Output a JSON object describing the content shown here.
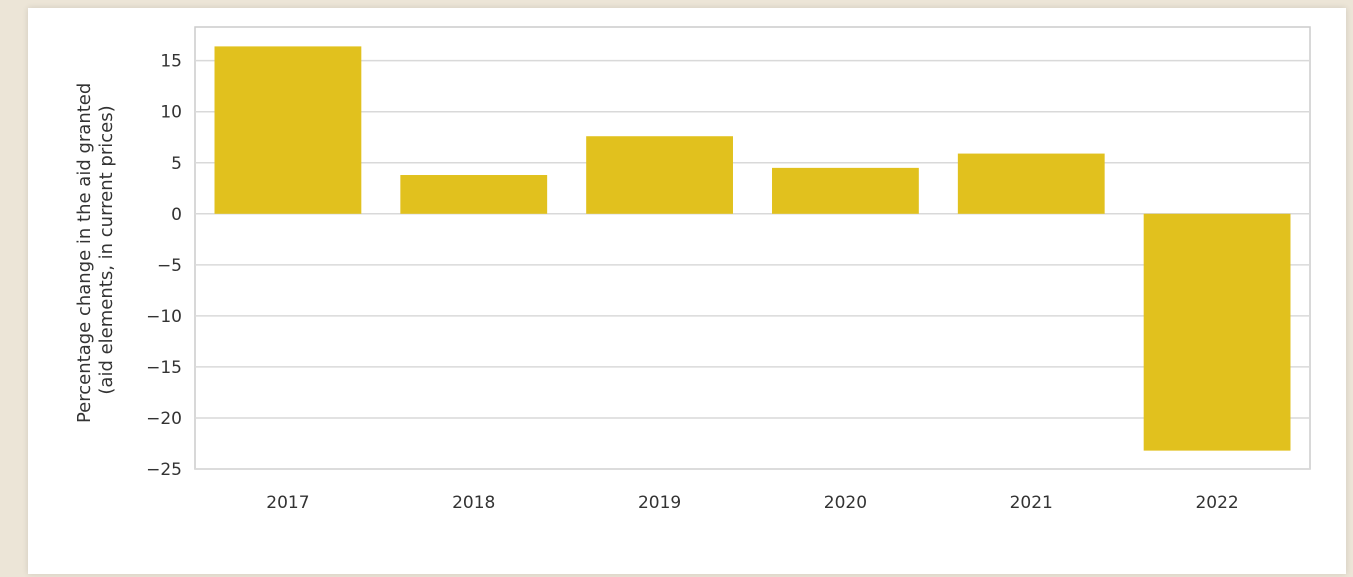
{
  "chart_data": {
    "type": "bar",
    "categories": [
      "2017",
      "2018",
      "2019",
      "2020",
      "2021",
      "2022"
    ],
    "values": [
      16.4,
      3.8,
      7.6,
      4.5,
      5.9,
      -23.2
    ],
    "ylabel_lines": [
      "Percentage change in the aid granted",
      "(aid elements, in current prices)"
    ],
    "xlabel": "",
    "title": "",
    "ylim": [
      -25,
      18.3
    ],
    "yticks": [
      15,
      10,
      5,
      0,
      -5,
      -10,
      -15,
      -20,
      -25
    ],
    "ytick_labels": [
      "15",
      "10",
      "5",
      "0",
      "−5",
      "−10",
      "−15",
      "−20",
      "−25"
    ],
    "grid": true,
    "bar_color": "#e1c11e",
    "grid_color": "#d9d9d9",
    "frame_color": "#cccccc"
  }
}
